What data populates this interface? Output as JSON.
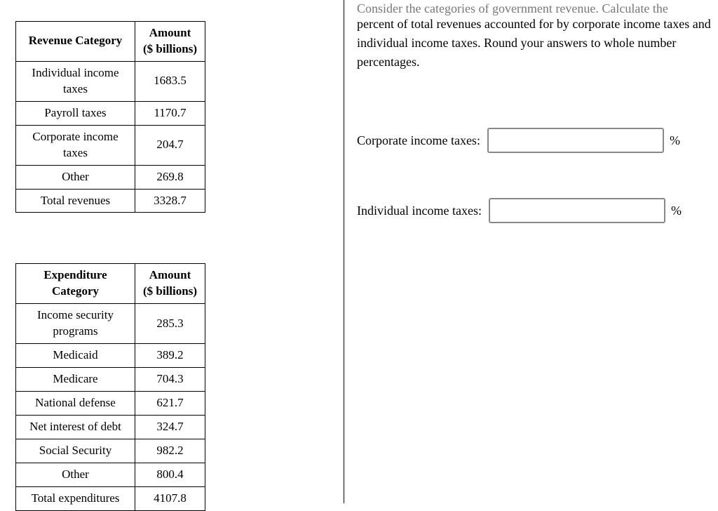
{
  "revenue_table": {
    "headers": {
      "category": "Revenue Category",
      "amount_line1": "Amount",
      "amount_line2": "($ billions)"
    },
    "rows": [
      {
        "category_line1": "Individual income",
        "category_line2": "taxes",
        "amount": "1683.5"
      },
      {
        "category_line1": "Payroll taxes",
        "category_line2": "",
        "amount": "1170.7"
      },
      {
        "category_line1": "Corporate income",
        "category_line2": "taxes",
        "amount": "204.7"
      },
      {
        "category_line1": "Other",
        "category_line2": "",
        "amount": "269.8"
      },
      {
        "category_line1": "Total revenues",
        "category_line2": "",
        "amount": "3328.7"
      }
    ]
  },
  "expenditure_table": {
    "headers": {
      "category_line1": "Expenditure",
      "category_line2": "Category",
      "amount_line1": "Amount",
      "amount_line2": "($ billions)"
    },
    "rows": [
      {
        "category_line1": "Income security",
        "category_line2": "programs",
        "amount": "285.3"
      },
      {
        "category_line1": "Medicaid",
        "category_line2": "",
        "amount": "389.2"
      },
      {
        "category_line1": "Medicare",
        "category_line2": "",
        "amount": "704.3"
      },
      {
        "category_line1": "National defense",
        "category_line2": "",
        "amount": "621.7"
      },
      {
        "category_line1": "Net interest of debt",
        "category_line2": "",
        "amount": "324.7"
      },
      {
        "category_line1": "Social Security",
        "category_line2": "",
        "amount": "982.2"
      },
      {
        "category_line1": "Other",
        "category_line2": "",
        "amount": "800.4"
      },
      {
        "category_line1": "Total expenditures",
        "category_line2": "",
        "amount": "4107.8"
      }
    ]
  },
  "question": {
    "cut_line": "Consider the categories of government revenue. Calculate the",
    "text": "percent of total revenues accounted for by corporate income taxes and individual income taxes. Round your answers to whole number percentages."
  },
  "answers": {
    "corporate_label": "Corporate income taxes:",
    "corporate_value": "",
    "individual_label": "Individual income taxes:",
    "individual_value": "",
    "percent_symbol": "%"
  }
}
